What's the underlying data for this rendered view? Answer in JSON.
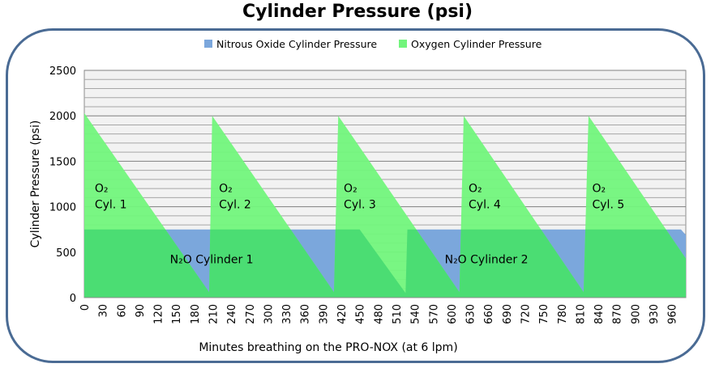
{
  "chart_data": {
    "type": "area",
    "title": "Cylinder Pressure (psi)",
    "xlabel": "Minutes breathing on the PRO-NOX (at 6 lpm)",
    "ylabel": "Cylinder Pressure (psi)",
    "xlim": [
      0,
      983
    ],
    "ylim": [
      0,
      2500
    ],
    "x_ticks": [
      0,
      30,
      60,
      90,
      120,
      150,
      180,
      210,
      240,
      270,
      300,
      330,
      360,
      390,
      420,
      450,
      480,
      510,
      540,
      570,
      600,
      630,
      660,
      690,
      720,
      750,
      780,
      810,
      840,
      870,
      900,
      930,
      960
    ],
    "y_ticks": [
      0,
      500,
      1000,
      1500,
      2000,
      2500
    ],
    "grid": "horizontal, every 100 psi",
    "legend": "top",
    "series": [
      {
        "name": "Nitrous Oxide Cylinder Pressure",
        "color": "#7ba7dc",
        "points": [
          [
            0,
            750
          ],
          [
            450,
            750
          ],
          [
            525,
            50
          ],
          [
            528,
            750
          ],
          [
            975,
            750
          ],
          [
            983,
            690
          ]
        ]
      },
      {
        "name": "Oxygen Cylinder Pressure",
        "color": "#72f57c",
        "points": [
          [
            0,
            2030
          ],
          [
            204,
            60
          ],
          [
            209,
            2000
          ],
          [
            408,
            60
          ],
          [
            415,
            2000
          ],
          [
            613,
            60
          ],
          [
            620,
            2000
          ],
          [
            816,
            60
          ],
          [
            824,
            2000
          ],
          [
            983,
            430
          ]
        ]
      }
    ],
    "overlap_color": "#4bdd73",
    "annotations": [
      {
        "lines": [
          "O₂",
          "Cyl. 1"
        ],
        "x": 17,
        "y": 1160
      },
      {
        "lines": [
          "O₂",
          "Cyl. 2"
        ],
        "x": 220,
        "y": 1160
      },
      {
        "lines": [
          "O₂",
          "Cyl. 3"
        ],
        "x": 424,
        "y": 1160
      },
      {
        "lines": [
          "O₂",
          "Cyl. 4"
        ],
        "x": 628,
        "y": 1160
      },
      {
        "lines": [
          "O₂",
          "Cyl. 5"
        ],
        "x": 830,
        "y": 1160
      },
      {
        "lines": [
          "N₂O  Cylinder 1"
        ],
        "x": 140,
        "y": 380
      },
      {
        "lines": [
          "N₂O  Cylinder 2"
        ],
        "x": 589,
        "y": 380
      }
    ]
  }
}
